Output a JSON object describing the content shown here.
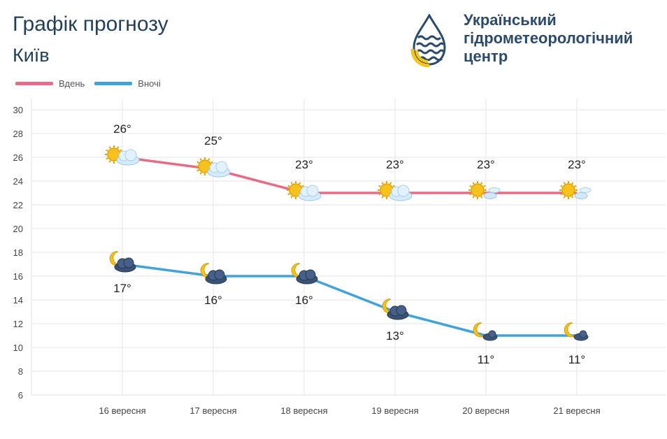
{
  "header": {
    "title": "Графік прогнозу",
    "city": "Київ",
    "org_lines": [
      "Український",
      "гідрометеорологічний",
      "центр"
    ]
  },
  "chart_data": {
    "type": "line",
    "categories": [
      "16 вересня",
      "17 вересня",
      "18 вересня",
      "19 вересня",
      "20 вересня",
      "21 вересня"
    ],
    "series": [
      {
        "name": "Вдень",
        "color": "#e96a85",
        "values": [
          26,
          25,
          23,
          23,
          23,
          23
        ],
        "labels": [
          "26°",
          "25°",
          "23°",
          "23°",
          "23°",
          "23°"
        ],
        "icons": [
          "sun-cloud-icon",
          "sun-cloud-icon",
          "sun-cloud-icon",
          "sun-cloud-icon",
          "sun-small-cloud-icon",
          "sun-small-cloud-icon"
        ]
      },
      {
        "name": "Вночі",
        "color": "#3fa3dd",
        "values": [
          17,
          16,
          16,
          13,
          11,
          11
        ],
        "labels": [
          "17°",
          "16°",
          "16°",
          "13°",
          "11°",
          "11°"
        ],
        "icons": [
          "moon-cloud-icon",
          "moon-cloud-icon",
          "moon-cloud-icon",
          "moon-cloud-icon",
          "moon-small-cloud-icon",
          "moon-small-cloud-icon"
        ]
      }
    ],
    "ylim": [
      6,
      30
    ],
    "yticks": [
      "6",
      "8",
      "10",
      "12",
      "14",
      "16",
      "18",
      "20",
      "22",
      "24",
      "26",
      "28",
      "30"
    ],
    "grid": true,
    "legend": "top-left"
  }
}
